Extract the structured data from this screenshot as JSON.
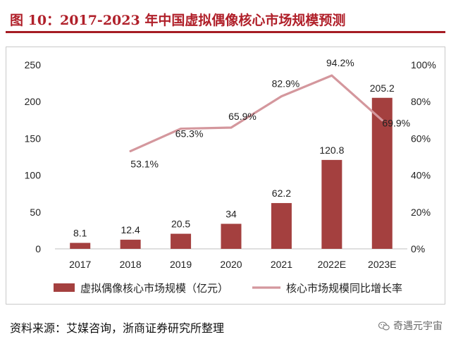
{
  "figure_title": "图 10：2017-2023 年中国虚拟偶像核心市场规模预测",
  "source_text": "资料来源：艾媒咨询，浙商证券研究所整理",
  "watermark_text": "奇遇元宇宙",
  "watermark_icon": "wechat-icon",
  "colors": {
    "bar": "#a4403f",
    "line": "#d4979d",
    "title": "#b0202a",
    "rule": "#a51c24",
    "axis_text": "#222222"
  },
  "chart_data": {
    "type": "bar",
    "categories": [
      "2017",
      "2018",
      "2019",
      "2020",
      "2021",
      "2022E",
      "2023E"
    ],
    "series": [
      {
        "name": "虚拟偶像核心市场规模（亿元）",
        "type": "bar",
        "axis": "left",
        "values": [
          8.1,
          12.4,
          20.5,
          34,
          62.2,
          120.8,
          205.2
        ],
        "labels": [
          "8.1",
          "12.4",
          "20.5",
          "34",
          "62.2",
          "120.8",
          "205.2"
        ]
      },
      {
        "name": "核心市场规模同比增长率",
        "type": "line",
        "axis": "right",
        "values": [
          null,
          53.1,
          65.3,
          65.9,
          82.9,
          94.2,
          69.9
        ],
        "labels": [
          "",
          "53.1%",
          "65.3%",
          "65.9%",
          "82.9%",
          "94.2%",
          "69.9%"
        ]
      }
    ],
    "y_left": {
      "ylim": [
        0,
        250
      ],
      "ticks": [
        0,
        50,
        100,
        150,
        200,
        250
      ],
      "tick_labels": [
        "0",
        "50",
        "100",
        "150",
        "200",
        "250"
      ]
    },
    "y_right": {
      "ylim": [
        0,
        100
      ],
      "ticks": [
        0,
        20,
        40,
        60,
        80,
        100
      ],
      "tick_labels": [
        "0%",
        "20%",
        "40%",
        "60%",
        "80%",
        "100%"
      ]
    },
    "legend_position": "bottom",
    "grid": false
  }
}
